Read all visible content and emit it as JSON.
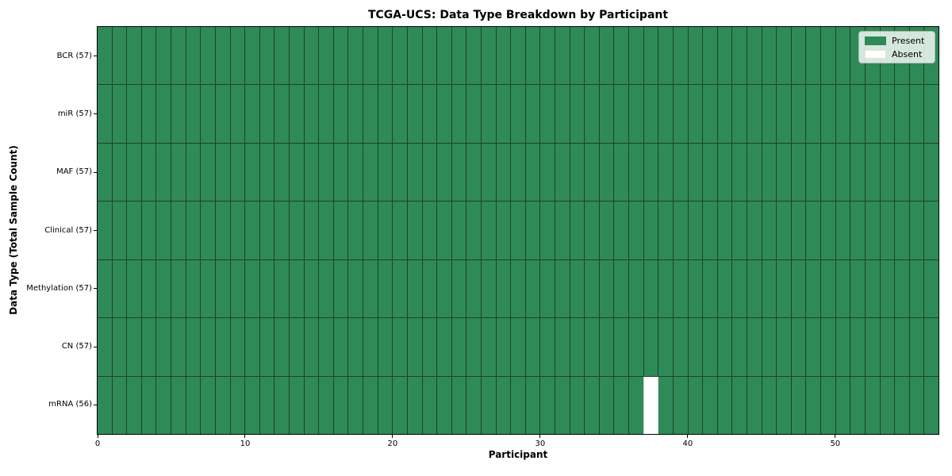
{
  "colors": {
    "present": "#2e8b57",
    "absent": "#ffffff",
    "cell_edge": "#20402e",
    "spine": "#000000",
    "background": "#ffffff"
  },
  "chart_data": {
    "type": "heatmap",
    "title": "TCGA-UCS: Data Type Breakdown by Participant",
    "xlabel": "Participant",
    "ylabel": "Data Type (Total Sample Count)",
    "n_participants": 57,
    "xlim": [
      0,
      57
    ],
    "x_ticks": [
      0,
      10,
      20,
      30,
      40,
      50
    ],
    "grid": true,
    "legend_position": "upper right",
    "legend": [
      {
        "label": "Present",
        "color": "#2e8b57"
      },
      {
        "label": "Absent",
        "color": "#ffffff"
      }
    ],
    "rows": [
      {
        "name": "BCR",
        "label": "BCR (57)",
        "present_count": 57,
        "absent_participants": []
      },
      {
        "name": "miR",
        "label": "miR (57)",
        "present_count": 57,
        "absent_participants": []
      },
      {
        "name": "MAF",
        "label": "MAF (57)",
        "present_count": 57,
        "absent_participants": []
      },
      {
        "name": "Clinical",
        "label": "Clinical (57)",
        "present_count": 57,
        "absent_participants": []
      },
      {
        "name": "Methylation",
        "label": "Methylation (57)",
        "present_count": 57,
        "absent_participants": []
      },
      {
        "name": "CN",
        "label": "CN (57)",
        "present_count": 57,
        "absent_participants": []
      },
      {
        "name": "mRNA",
        "label": "mRNA (56)",
        "present_count": 56,
        "absent_participants": [
          37
        ]
      }
    ]
  }
}
